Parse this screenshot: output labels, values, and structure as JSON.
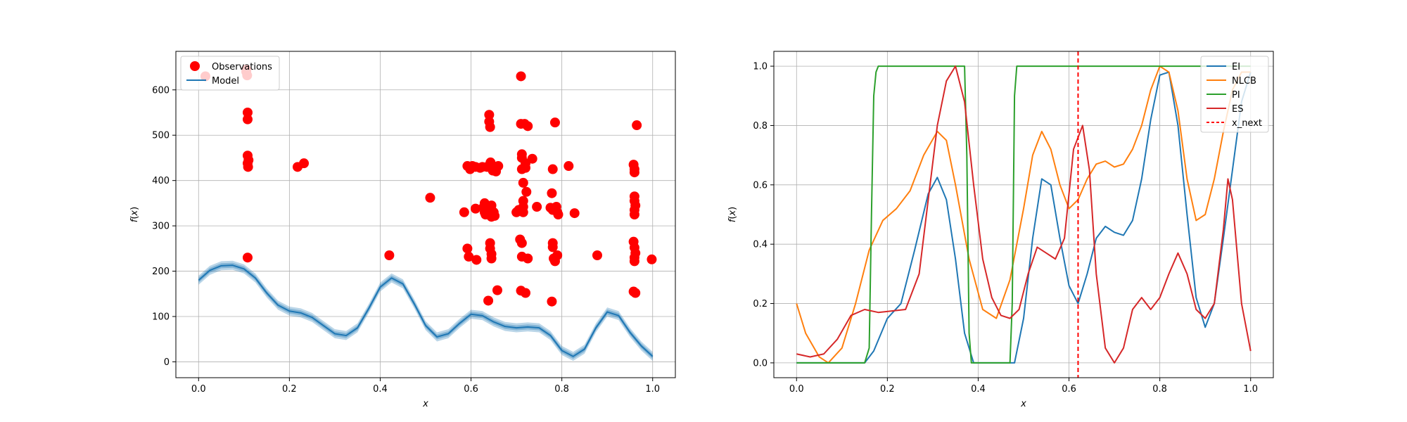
{
  "chart_data": [
    {
      "type": "scatter",
      "title": "",
      "xlabel": "x",
      "ylabel": "f(x)",
      "xlim": [
        -0.05,
        1.05
      ],
      "ylim": [
        -35,
        685
      ],
      "xticks": [
        "0.0",
        "0.2",
        "0.4",
        "0.6",
        "0.8",
        "1.0"
      ],
      "xtick_values": [
        0,
        0.2,
        0.4,
        0.6,
        0.8,
        1.0
      ],
      "yticks": [
        "0",
        "100",
        "200",
        "300",
        "400",
        "500",
        "600"
      ],
      "ytick_values": [
        0,
        100,
        200,
        300,
        400,
        500,
        600
      ],
      "grid": true,
      "legend_position": "top-left",
      "series": [
        {
          "name": "Observations",
          "kind": "scatter",
          "color": "#ff0000",
          "points": [
            [
              0.015,
              630
            ],
            [
              0.105,
              640
            ],
            [
              0.105,
              645
            ],
            [
              0.107,
              632
            ],
            [
              0.108,
              550
            ],
            [
              0.108,
              535
            ],
            [
              0.108,
              455
            ],
            [
              0.11,
              445
            ],
            [
              0.108,
              438
            ],
            [
              0.109,
              430
            ],
            [
              0.108,
              230
            ],
            [
              0.218,
              430
            ],
            [
              0.232,
              438
            ],
            [
              0.42,
              235
            ],
            [
              0.51,
              362
            ],
            [
              0.585,
              330
            ],
            [
              0.592,
              250
            ],
            [
              0.592,
              432
            ],
            [
              0.598,
              425
            ],
            [
              0.595,
              232
            ],
            [
              0.603,
              432
            ],
            [
              0.61,
              430
            ],
            [
              0.61,
              338
            ],
            [
              0.612,
              225
            ],
            [
              0.62,
              428
            ],
            [
              0.625,
              430
            ],
            [
              0.628,
              342
            ],
            [
              0.63,
              330
            ],
            [
              0.63,
              350
            ],
            [
              0.632,
              325
            ],
            [
              0.635,
              430
            ],
            [
              0.638,
              135
            ],
            [
              0.64,
              545
            ],
            [
              0.64,
              530
            ],
            [
              0.642,
              518
            ],
            [
              0.643,
              440
            ],
            [
              0.645,
              345
            ],
            [
              0.645,
              335
            ],
            [
              0.645,
              320
            ],
            [
              0.642,
              262
            ],
            [
              0.642,
              250
            ],
            [
              0.645,
              238
            ],
            [
              0.645,
              228
            ],
            [
              0.648,
              422
            ],
            [
              0.65,
              330
            ],
            [
              0.652,
              322
            ],
            [
              0.655,
              420
            ],
            [
              0.658,
              158
            ],
            [
              0.66,
              432
            ],
            [
              0.7,
              330
            ],
            [
              0.705,
              335
            ],
            [
              0.708,
              270
            ],
            [
              0.71,
              630
            ],
            [
              0.71,
              525
            ],
            [
              0.712,
              458
            ],
            [
              0.712,
              450
            ],
            [
              0.712,
              425
            ],
            [
              0.715,
              395
            ],
            [
              0.715,
              355
            ],
            [
              0.715,
              342
            ],
            [
              0.715,
              330
            ],
            [
              0.712,
              262
            ],
            [
              0.712,
              232
            ],
            [
              0.71,
              157
            ],
            [
              0.718,
              525
            ],
            [
              0.72,
              438
            ],
            [
              0.72,
              428
            ],
            [
              0.722,
              375
            ],
            [
              0.72,
              152
            ],
            [
              0.725,
              520
            ],
            [
              0.725,
              228
            ],
            [
              0.735,
              448
            ],
            [
              0.745,
              342
            ],
            [
              0.775,
              340
            ],
            [
              0.778,
              372
            ],
            [
              0.78,
              335
            ],
            [
              0.78,
              262
            ],
            [
              0.78,
              253
            ],
            [
              0.78,
              425
            ],
            [
              0.782,
              228
            ],
            [
              0.785,
              222
            ],
            [
              0.785,
              528
            ],
            [
              0.788,
              342
            ],
            [
              0.79,
              330
            ],
            [
              0.792,
              325
            ],
            [
              0.79,
              235
            ],
            [
              0.778,
              133
            ],
            [
              0.815,
              432
            ],
            [
              0.828,
              328
            ],
            [
              0.878,
              235
            ],
            [
              0.958,
              435
            ],
            [
              0.96,
              425
            ],
            [
              0.96,
              418
            ],
            [
              0.96,
              365
            ],
            [
              0.96,
              355
            ],
            [
              0.962,
              345
            ],
            [
              0.96,
              335
            ],
            [
              0.96,
              325
            ],
            [
              0.958,
              265
            ],
            [
              0.96,
              252
            ],
            [
              0.962,
              240
            ],
            [
              0.96,
              230
            ],
            [
              0.96,
              222
            ],
            [
              0.958,
              155
            ],
            [
              0.962,
              152
            ],
            [
              0.965,
              522
            ],
            [
              0.998,
              226
            ]
          ]
        },
        {
          "name": "Model",
          "kind": "line",
          "color": "#1f77b4",
          "x": [
            0.0,
            0.025,
            0.05,
            0.075,
            0.1,
            0.125,
            0.15,
            0.175,
            0.2,
            0.225,
            0.25,
            0.275,
            0.3,
            0.325,
            0.35,
            0.375,
            0.4,
            0.425,
            0.45,
            0.475,
            0.5,
            0.525,
            0.55,
            0.575,
            0.6,
            0.625,
            0.65,
            0.675,
            0.7,
            0.725,
            0.75,
            0.775,
            0.8,
            0.825,
            0.85,
            0.875,
            0.9,
            0.925,
            0.95,
            0.975,
            1.0
          ],
          "y": [
            180,
            202,
            212,
            213,
            205,
            185,
            152,
            125,
            112,
            108,
            98,
            80,
            62,
            58,
            75,
            118,
            165,
            185,
            172,
            128,
            80,
            55,
            62,
            85,
            105,
            102,
            88,
            78,
            75,
            77,
            75,
            58,
            25,
            12,
            28,
            75,
            110,
            102,
            65,
            35,
            12
          ],
          "band": 10
        }
      ]
    },
    {
      "type": "line",
      "title": "",
      "xlabel": "x",
      "ylabel": "f(x)",
      "xlim": [
        -0.05,
        1.05
      ],
      "ylim": [
        -0.05,
        1.05
      ],
      "xticks": [
        "0.0",
        "0.2",
        "0.4",
        "0.6",
        "0.8",
        "1.0"
      ],
      "xtick_values": [
        0,
        0.2,
        0.4,
        0.6,
        0.8,
        1.0
      ],
      "yticks": [
        "0.0",
        "0.2",
        "0.4",
        "0.6",
        "0.8",
        "1.0"
      ],
      "ytick_values": [
        0,
        0.2,
        0.4,
        0.6,
        0.8,
        1.0
      ],
      "grid": true,
      "legend_position": "top-right",
      "series": [
        {
          "name": "EI",
          "color": "#1f77b4",
          "dash": "",
          "x": [
            0.0,
            0.05,
            0.1,
            0.15,
            0.17,
            0.2,
            0.23,
            0.26,
            0.29,
            0.31,
            0.33,
            0.35,
            0.37,
            0.39,
            0.42,
            0.45,
            0.48,
            0.5,
            0.52,
            0.54,
            0.56,
            0.58,
            0.6,
            0.62,
            0.64,
            0.66,
            0.68,
            0.7,
            0.72,
            0.74,
            0.76,
            0.78,
            0.8,
            0.82,
            0.84,
            0.86,
            0.88,
            0.9,
            0.92,
            0.94,
            0.96,
            0.98,
            1.0
          ],
          "y": [
            0.0,
            0.0,
            0.0,
            0.0,
            0.04,
            0.15,
            0.2,
            0.38,
            0.57,
            0.625,
            0.55,
            0.35,
            0.1,
            0.0,
            0.0,
            0.0,
            0.0,
            0.15,
            0.42,
            0.62,
            0.6,
            0.42,
            0.26,
            0.2,
            0.3,
            0.42,
            0.46,
            0.44,
            0.43,
            0.48,
            0.62,
            0.82,
            0.97,
            0.98,
            0.8,
            0.5,
            0.22,
            0.12,
            0.2,
            0.42,
            0.65,
            0.88,
            0.98
          ]
        },
        {
          "name": "NLCB",
          "color": "#ff7f0e",
          "dash": "",
          "x": [
            0.0,
            0.02,
            0.05,
            0.07,
            0.1,
            0.13,
            0.16,
            0.19,
            0.22,
            0.25,
            0.28,
            0.31,
            0.33,
            0.35,
            0.38,
            0.41,
            0.44,
            0.47,
            0.5,
            0.52,
            0.54,
            0.56,
            0.58,
            0.6,
            0.62,
            0.64,
            0.66,
            0.68,
            0.7,
            0.72,
            0.74,
            0.76,
            0.78,
            0.8,
            0.82,
            0.84,
            0.86,
            0.88,
            0.9,
            0.92,
            0.94,
            0.96,
            0.98,
            1.0
          ],
          "y": [
            0.2,
            0.1,
            0.02,
            0.0,
            0.05,
            0.2,
            0.38,
            0.48,
            0.52,
            0.58,
            0.7,
            0.78,
            0.75,
            0.6,
            0.35,
            0.18,
            0.15,
            0.28,
            0.52,
            0.7,
            0.78,
            0.72,
            0.6,
            0.52,
            0.55,
            0.62,
            0.67,
            0.68,
            0.66,
            0.67,
            0.72,
            0.8,
            0.92,
            1.0,
            0.98,
            0.85,
            0.62,
            0.48,
            0.5,
            0.62,
            0.78,
            0.92,
            0.98,
            0.98
          ]
        },
        {
          "name": "PI",
          "color": "#2ca02c",
          "dash": "",
          "x": [
            0.0,
            0.15,
            0.16,
            0.165,
            0.17,
            0.175,
            0.18,
            0.2,
            0.3,
            0.37,
            0.375,
            0.38,
            0.385,
            0.39,
            0.47,
            0.475,
            0.48,
            0.485,
            0.49,
            0.6,
            0.8,
            1.0
          ],
          "y": [
            0.0,
            0.0,
            0.05,
            0.5,
            0.9,
            0.98,
            1.0,
            1.0,
            1.0,
            1.0,
            0.7,
            0.1,
            0.0,
            0.0,
            0.0,
            0.2,
            0.9,
            1.0,
            1.0,
            1.0,
            1.0,
            1.0
          ]
        },
        {
          "name": "ES",
          "color": "#d62728",
          "dash": "",
          "x": [
            0.0,
            0.03,
            0.06,
            0.09,
            0.12,
            0.15,
            0.18,
            0.21,
            0.24,
            0.27,
            0.29,
            0.31,
            0.33,
            0.35,
            0.37,
            0.39,
            0.41,
            0.43,
            0.45,
            0.47,
            0.49,
            0.51,
            0.53,
            0.55,
            0.57,
            0.59,
            0.61,
            0.63,
            0.645,
            0.66,
            0.68,
            0.7,
            0.72,
            0.74,
            0.76,
            0.78,
            0.8,
            0.82,
            0.84,
            0.86,
            0.88,
            0.9,
            0.92,
            0.94,
            0.95,
            0.96,
            0.98,
            1.0
          ],
          "y": [
            0.03,
            0.02,
            0.03,
            0.08,
            0.16,
            0.18,
            0.17,
            0.175,
            0.18,
            0.3,
            0.55,
            0.8,
            0.95,
            1.0,
            0.88,
            0.6,
            0.35,
            0.22,
            0.16,
            0.15,
            0.18,
            0.3,
            0.39,
            0.37,
            0.35,
            0.42,
            0.72,
            0.8,
            0.65,
            0.3,
            0.05,
            0.0,
            0.05,
            0.18,
            0.22,
            0.18,
            0.22,
            0.3,
            0.37,
            0.3,
            0.18,
            0.15,
            0.2,
            0.45,
            0.62,
            0.55,
            0.2,
            0.04
          ]
        },
        {
          "name": "x_next",
          "color": "#ff0000",
          "dash": "6,4",
          "vline": 0.62
        }
      ]
    }
  ]
}
